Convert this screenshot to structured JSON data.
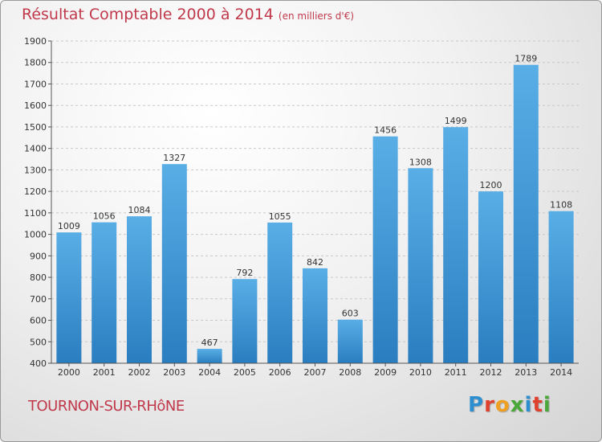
{
  "header": {
    "title": "Résultat Comptable 2000 à 2014",
    "subtitle": "(en milliers d'€)"
  },
  "footer": {
    "location": "TOURNON-SUR-RHôNE",
    "brand": "Proxiti",
    "brand_letters": [
      {
        "char": "P",
        "color": "#2e8fd0"
      },
      {
        "char": "r",
        "color": "#e0412e"
      },
      {
        "char": "o",
        "color": "#f0a020"
      },
      {
        "char": "x",
        "color": "#4aa83a"
      },
      {
        "char": "i",
        "color": "#2e8fd0"
      },
      {
        "char": "t",
        "color": "#e0412e"
      },
      {
        "char": "i",
        "color": "#4aa83a"
      }
    ]
  },
  "chart_data": {
    "type": "bar",
    "title": "Résultat Comptable 2000 à 2014",
    "subtitle": "(en milliers d'€)",
    "categories": [
      "2000",
      "2001",
      "2002",
      "2003",
      "2004",
      "2005",
      "2006",
      "2007",
      "2008",
      "2009",
      "2010",
      "2011",
      "2012",
      "2013",
      "2014"
    ],
    "values": [
      1009,
      1056,
      1084,
      1327,
      467,
      792,
      1055,
      842,
      603,
      1456,
      1308,
      1499,
      1200,
      1789,
      1108
    ],
    "ylim": [
      400,
      1900
    ],
    "yticks": [
      400,
      500,
      600,
      700,
      800,
      900,
      1000,
      1100,
      1200,
      1300,
      1400,
      1500,
      1600,
      1700,
      1800,
      1900
    ],
    "grid": true,
    "data_labels": true,
    "colors": {
      "bar_top": "#5aaee6",
      "bar_bottom": "#2a7ec0",
      "grid": "#c8c8c8",
      "axis": "#555555",
      "text": "#333333"
    }
  }
}
